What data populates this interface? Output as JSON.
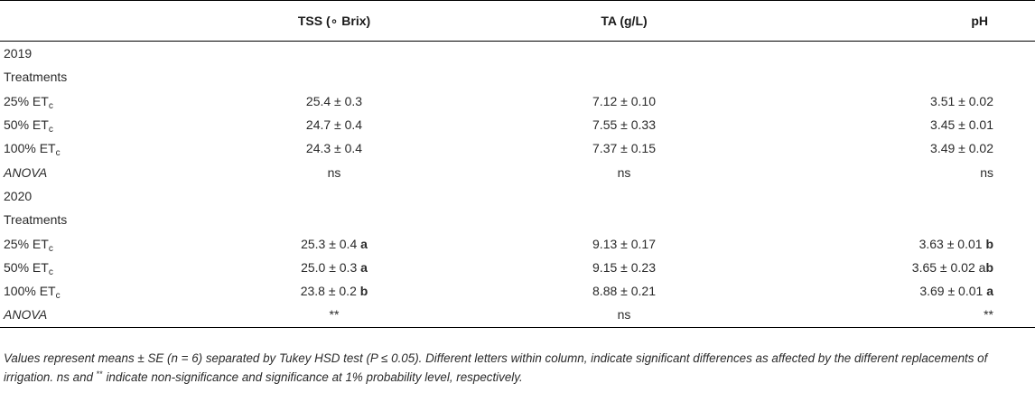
{
  "table": {
    "headers": [
      "",
      "TSS (∘ Brix)",
      "TA (g/L)",
      "pH"
    ],
    "rows": [
      {
        "label": "2019",
        "sub": "",
        "italic": false,
        "tss": "",
        "tss_letter": "",
        "ta": "",
        "ph": "",
        "ph_pre": "",
        "ph_letter": ""
      },
      {
        "label": "Treatments",
        "sub": "",
        "italic": false,
        "tss": "",
        "tss_letter": "",
        "ta": "",
        "ph": "",
        "ph_pre": "",
        "ph_letter": ""
      },
      {
        "label": "25% ET",
        "sub": "c",
        "italic": false,
        "tss": "25.4 ± 0.3",
        "tss_letter": "",
        "ta": "7.12 ± 0.10",
        "ph": "3.51 ± 0.02",
        "ph_pre": "",
        "ph_letter": ""
      },
      {
        "label": "50% ET",
        "sub": "c",
        "italic": false,
        "tss": "24.7 ± 0.4",
        "tss_letter": "",
        "ta": "7.55 ± 0.33",
        "ph": "3.45 ± 0.01",
        "ph_pre": "",
        "ph_letter": ""
      },
      {
        "label": "100% ET",
        "sub": "c",
        "italic": false,
        "tss": "24.3 ± 0.4",
        "tss_letter": "",
        "ta": "7.37 ± 0.15",
        "ph": "3.49 ± 0.02",
        "ph_pre": "",
        "ph_letter": ""
      },
      {
        "label": "ANOVA",
        "sub": "",
        "italic": true,
        "tss": "ns",
        "tss_letter": "",
        "ta": "ns",
        "ph": "ns",
        "ph_pre": "",
        "ph_letter": ""
      },
      {
        "label": "2020",
        "sub": "",
        "italic": false,
        "tss": "",
        "tss_letter": "",
        "ta": "",
        "ph": "",
        "ph_pre": "",
        "ph_letter": ""
      },
      {
        "label": "Treatments",
        "sub": "",
        "italic": false,
        "tss": "",
        "tss_letter": "",
        "ta": "",
        "ph": "",
        "ph_pre": "",
        "ph_letter": ""
      },
      {
        "label": "25% ET",
        "sub": "c",
        "italic": false,
        "tss": "25.3 ± 0.4 ",
        "tss_letter": "a",
        "ta": "9.13 ± 0.17",
        "ph": "3.63 ± 0.01 ",
        "ph_pre": "",
        "ph_letter": "b"
      },
      {
        "label": "50% ET",
        "sub": "c",
        "italic": false,
        "tss": "25.0 ± 0.3 ",
        "tss_letter": "a",
        "ta": "9.15 ± 0.23",
        "ph": "3.65 ± 0.02 ",
        "ph_pre": "a",
        "ph_letter": "b"
      },
      {
        "label": "100% ET",
        "sub": "c",
        "italic": false,
        "tss": "23.8 ± 0.2 ",
        "tss_letter": "b",
        "ta": "8.88 ± 0.21",
        "ph": "3.69 ± 0.01 ",
        "ph_pre": "",
        "ph_letter": "a"
      },
      {
        "label": "ANOVA",
        "sub": "",
        "italic": true,
        "tss": "**",
        "tss_letter": "",
        "ta": "ns",
        "ph": "**",
        "ph_pre": "",
        "ph_letter": ""
      }
    ]
  },
  "footnote": {
    "part1": "Values represent means ± SE (n = 6) separated by Tukey HSD test (P ≤ 0.05). Different letters within column, indicate significant differences as affected by the different replacements of irrigation. ns and ",
    "sup": "**",
    "part2": " indicate non-significance and significance at 1% probability level, respectively."
  }
}
